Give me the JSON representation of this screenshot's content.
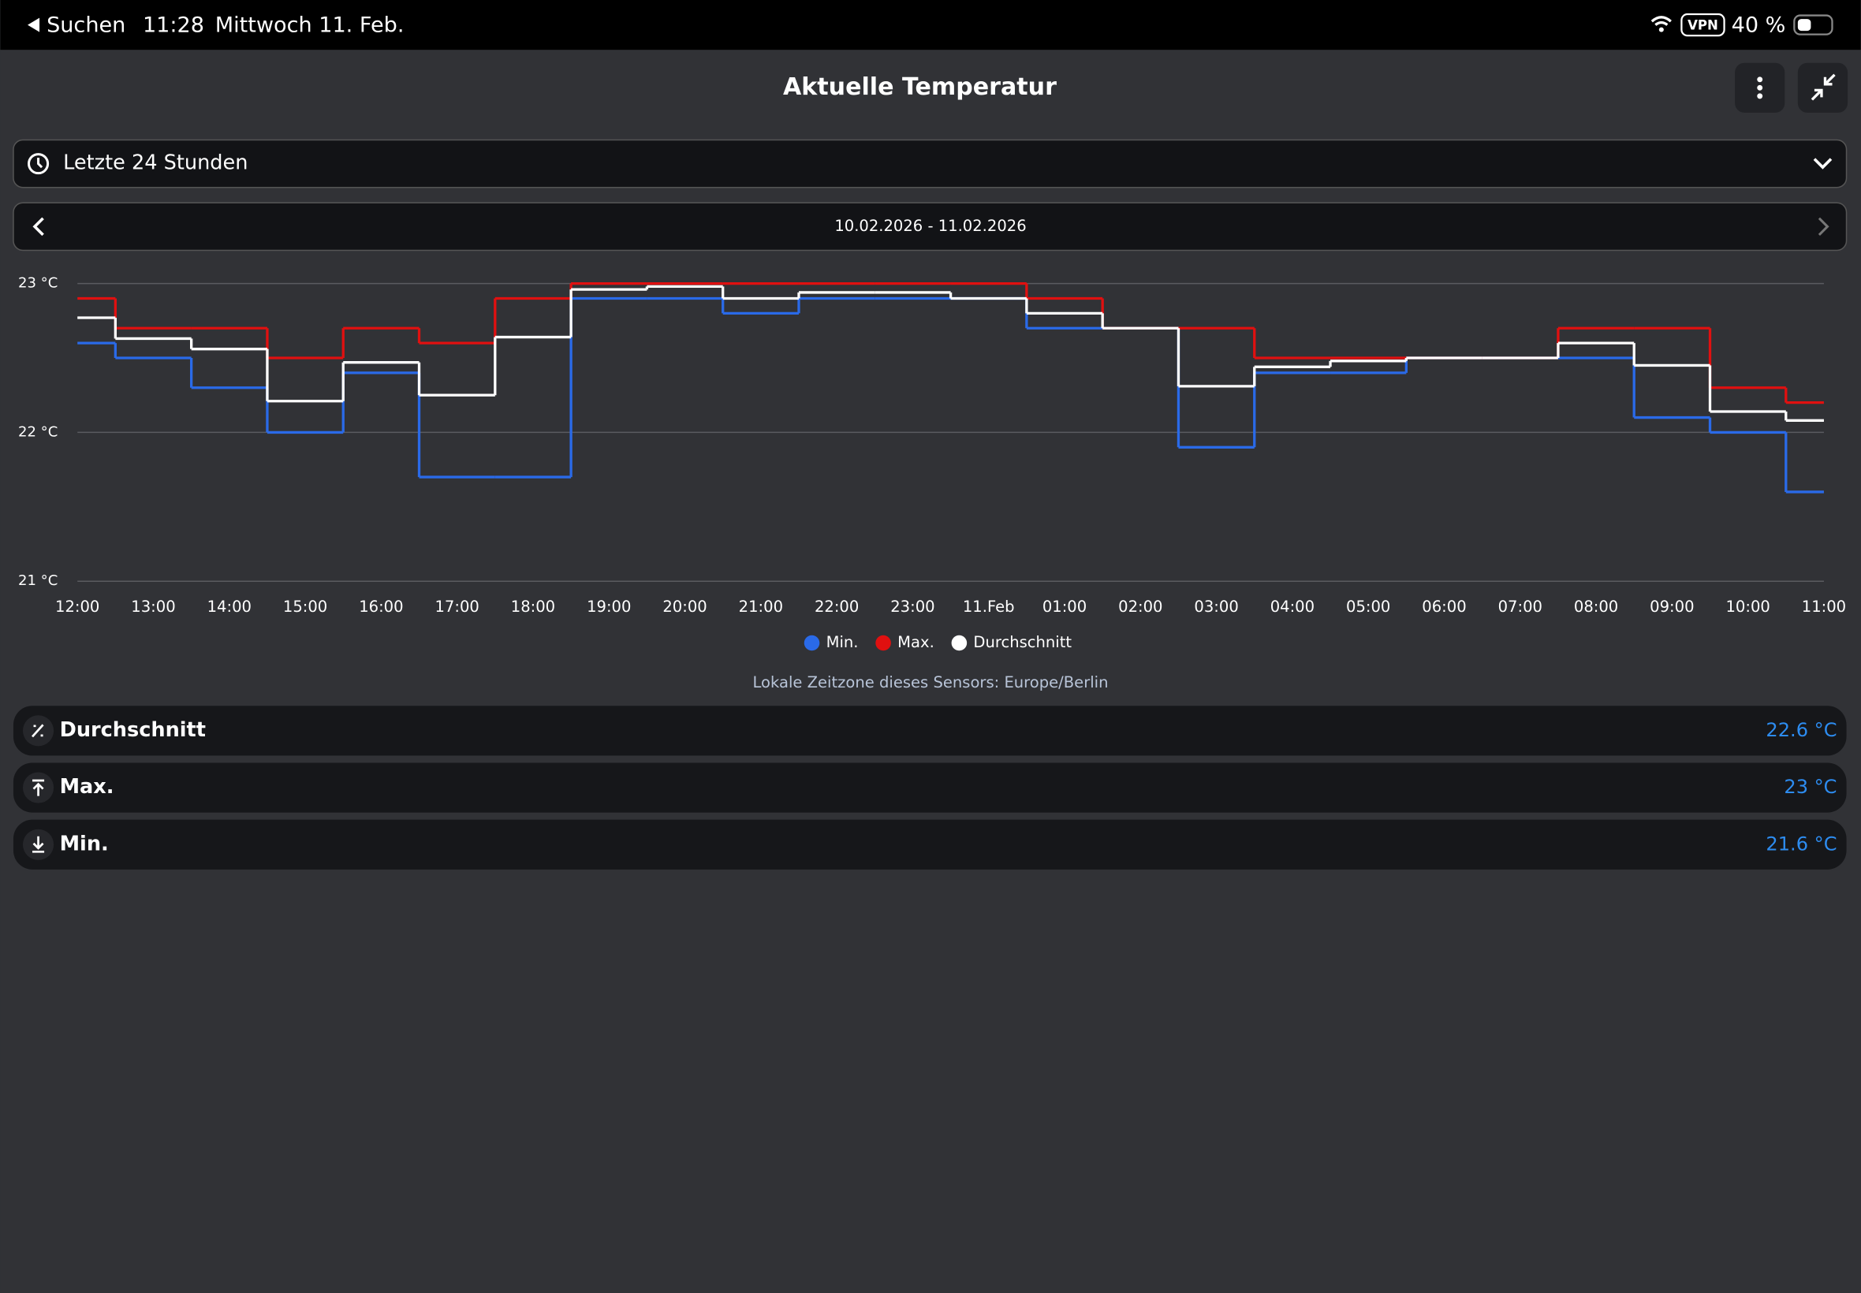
{
  "status_bar": {
    "back": "Suchen",
    "time": "11:28",
    "date": "Mittwoch 11. Feb.",
    "vpn": "VPN",
    "battery": "40 %"
  },
  "header": {
    "title": "Aktuelle Temperatur"
  },
  "range_select": "Letzte 24 Stunden",
  "date_range": "10.02.2026 - 11.02.2026",
  "chart_data": {
    "type": "line",
    "step": "middle",
    "categories": [
      "12:00",
      "13:00",
      "14:00",
      "15:00",
      "16:00",
      "17:00",
      "18:00",
      "19:00",
      "20:00",
      "21:00",
      "22:00",
      "23:00",
      "11.Feb",
      "01:00",
      "02:00",
      "03:00",
      "04:00",
      "05:00",
      "06:00",
      "07:00",
      "08:00",
      "09:00",
      "10:00",
      "11:00"
    ],
    "series": [
      {
        "name": "Min.",
        "color": "#2a6ae8",
        "values": [
          22.6,
          22.5,
          22.3,
          22.0,
          22.4,
          21.7,
          21.7,
          22.9,
          22.9,
          22.8,
          22.9,
          22.9,
          22.9,
          22.7,
          22.7,
          21.9,
          22.4,
          22.4,
          22.5,
          22.5,
          22.5,
          22.1,
          22.0,
          21.6
        ]
      },
      {
        "name": "Max.",
        "color": "#e01010",
        "values": [
          22.9,
          22.7,
          22.7,
          22.5,
          22.7,
          22.6,
          22.9,
          23.0,
          23.0,
          23.0,
          23.0,
          23.0,
          23.0,
          22.9,
          22.7,
          22.7,
          22.5,
          22.5,
          22.5,
          22.5,
          22.7,
          22.7,
          22.3,
          22.2
        ]
      },
      {
        "name": "Durchschnitt",
        "color": "#ffffff",
        "values": [
          22.77,
          22.63,
          22.56,
          22.21,
          22.47,
          22.25,
          22.64,
          22.96,
          22.98,
          22.9,
          22.94,
          22.94,
          22.9,
          22.8,
          22.7,
          22.31,
          22.44,
          22.48,
          22.5,
          22.5,
          22.6,
          22.45,
          22.14,
          22.08
        ]
      }
    ],
    "ylim": [
      21,
      23
    ],
    "yticks": [
      {
        "value": 21,
        "label": "21 °C"
      },
      {
        "value": 22,
        "label": "22 °C"
      },
      {
        "value": 23,
        "label": "23 °C"
      }
    ],
    "grid": true,
    "legend": "bottom"
  },
  "timezone_note": "Lokale Zeitzone dieses Sensors: Europe/Berlin",
  "stats": [
    {
      "label": "Durchschnitt",
      "value": "22.6 °C"
    },
    {
      "label": "Max.",
      "value": "23 °C"
    },
    {
      "label": "Min.",
      "value": "21.6 °C"
    }
  ]
}
